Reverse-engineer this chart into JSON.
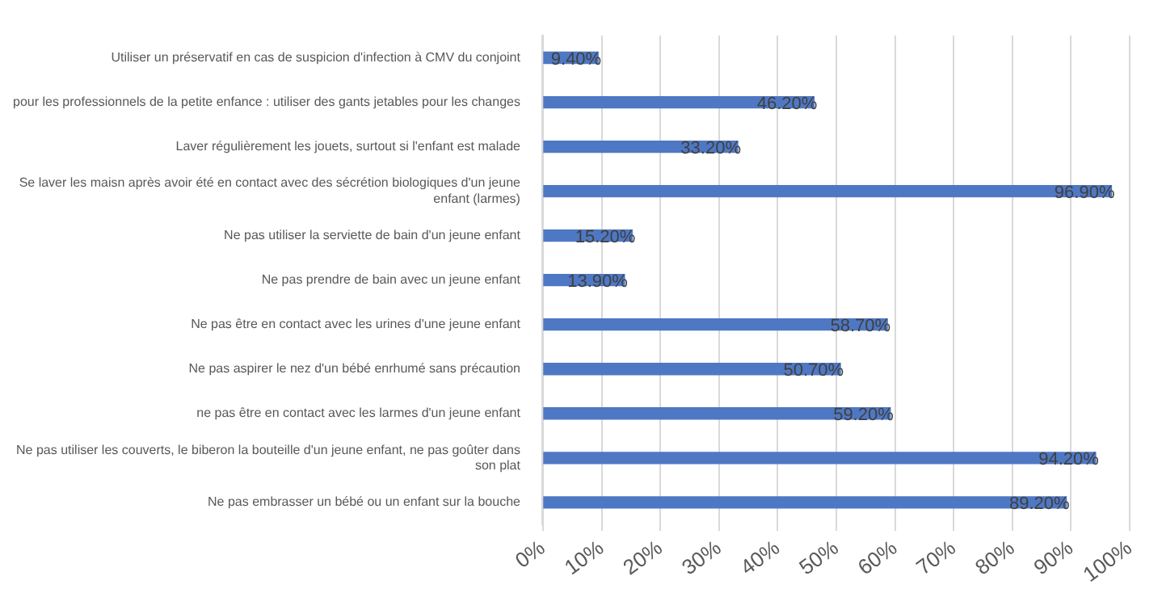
{
  "chart_data": {
    "type": "bar",
    "orientation": "horizontal",
    "categories": [
      "Utiliser un préservatif en cas de suspicion d'infection à CMV du conjoint",
      "pour les professionnels de la petite enfance : utiliser des gants jetables pour les changes",
      "Laver régulièrement les jouets, surtout si l'enfant est malade",
      "Se laver les maisn après avoir été en contact avec des sécrétion biologiques d'un jeune enfant (larmes)",
      "Ne pas utiliser la serviette de bain d'un jeune enfant",
      "Ne pas prendre de bain avec un jeune enfant",
      "Ne pas être en contact avec les urines d'une jeune enfant",
      "Ne pas aspirer le nez d'un bébé enrhumé sans précaution",
      "ne pas être en contact avec les larmes d'un jeune enfant",
      "Ne pas utiliser les couverts, le biberon la bouteille d'un jeune enfant, ne pas goûter dans son plat",
      "Ne pas embrasser un bébé ou un enfant sur la bouche"
    ],
    "values": [
      9.4,
      46.2,
      33.2,
      96.9,
      15.2,
      13.9,
      58.7,
      50.7,
      59.2,
      94.2,
      89.2
    ],
    "value_labels": [
      "9.40%",
      "46.20%",
      "33.20%",
      "96.90%",
      "15.20%",
      "13.90%",
      "58.70%",
      "50.70%",
      "59.20%",
      "94.20%",
      "89.20%"
    ],
    "color": "#4f78c4",
    "xlim": [
      0,
      100
    ],
    "xticks": [
      {
        "value": 0,
        "label": "0%"
      },
      {
        "value": 10,
        "label": "10%"
      },
      {
        "value": 20,
        "label": "20%"
      },
      {
        "value": 30,
        "label": "30%"
      },
      {
        "value": 40,
        "label": "40%"
      },
      {
        "value": 50,
        "label": "50%"
      },
      {
        "value": 60,
        "label": "60%"
      },
      {
        "value": 70,
        "label": "70%"
      },
      {
        "value": 80,
        "label": "80%"
      },
      {
        "value": 90,
        "label": "90%"
      },
      {
        "value": 100,
        "label": "100%"
      }
    ],
    "grid": "x",
    "legend": false
  }
}
